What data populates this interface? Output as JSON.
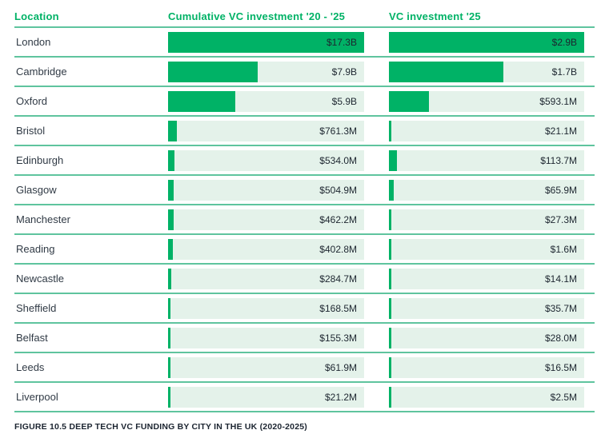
{
  "header": {
    "location_label": "Location",
    "col1_label": "Cumulative VC investment '20 - '25",
    "col2_label": "VC investment '25"
  },
  "caption": "FIGURE 10.5 DEEP TECH VC FUNDING BY CITY IN THE UK (2020-2025)",
  "colors": {
    "bar_green": "#00b266",
    "track_light_green": "#e4f2ea",
    "divider_green": "#5fc49e",
    "text_dark": "#242e39"
  },
  "chart_data": {
    "type": "bar",
    "orientation": "horizontal",
    "title": "FIGURE 10.5 DEEP TECH VC FUNDING BY CITY IN THE UK (2020-2025)",
    "categories": [
      "London",
      "Cambridge",
      "Oxford",
      "Bristol",
      "Edinburgh",
      "Glasgow",
      "Manchester",
      "Reading",
      "Newcastle",
      "Sheffield",
      "Belfast",
      "Leeds",
      "Liverpool"
    ],
    "series": [
      {
        "name": "Cumulative VC investment '20 - '25",
        "values_musd": [
          17300,
          7900,
          5900,
          761.3,
          534.0,
          504.9,
          462.2,
          402.8,
          284.7,
          168.5,
          155.3,
          61.9,
          21.2
        ],
        "labels": [
          "$17.3B",
          "$7.9B",
          "$5.9B",
          "$761.3M",
          "$534.0M",
          "$504.9M",
          "$462.2M",
          "$402.8M",
          "$284.7M",
          "$168.5M",
          "$155.3M",
          "$61.9M",
          "$21.2M"
        ],
        "axis_max_musd": 17300
      },
      {
        "name": "VC investment '25",
        "values_musd": [
          2900,
          1700,
          593.1,
          21.1,
          113.7,
          65.9,
          27.3,
          1.6,
          14.1,
          35.7,
          28.0,
          16.5,
          2.5
        ],
        "labels": [
          "$2.9B",
          "$1.7B",
          "$593.1M",
          "$21.1M",
          "$113.7M",
          "$65.9M",
          "$27.3M",
          "$1.6M",
          "$14.1M",
          "$35.7M",
          "$28.0M",
          "$16.5M",
          "$2.5M"
        ],
        "axis_max_musd": 2900
      }
    ],
    "legend_position": "column-headers",
    "grid": false
  }
}
